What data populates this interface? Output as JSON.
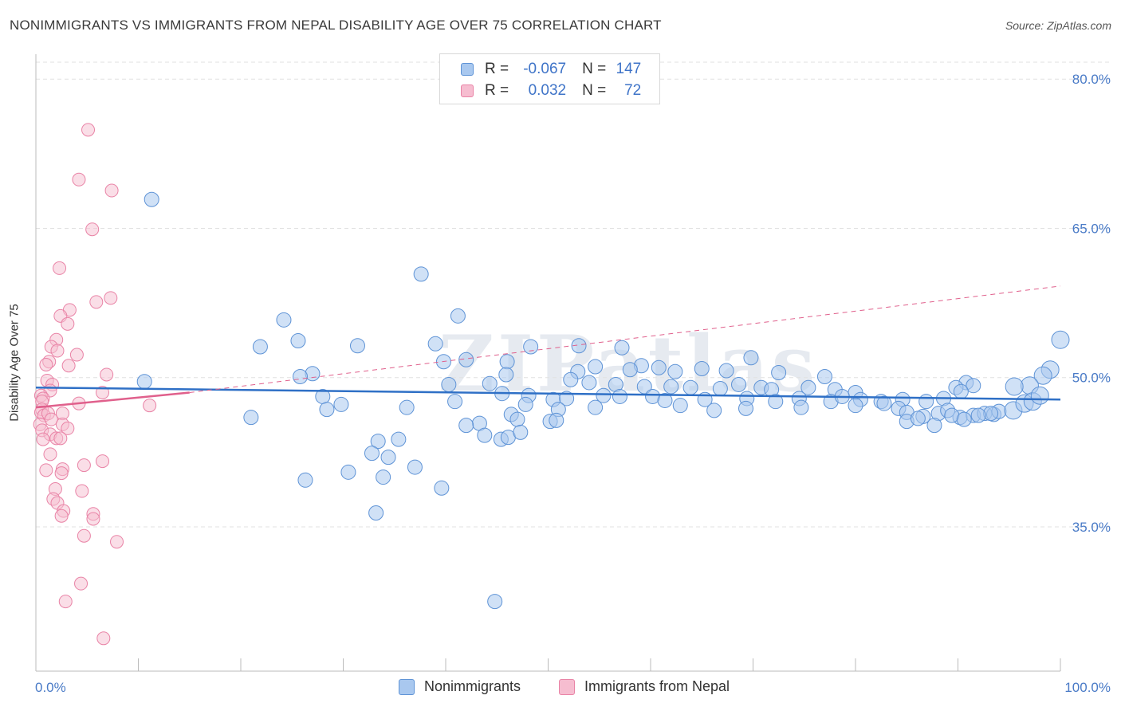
{
  "title": "NONIMMIGRANTS VS IMMIGRANTS FROM NEPAL DISABILITY AGE OVER 75 CORRELATION CHART",
  "source": "Source: ZipAtlas.com",
  "watermark": "ZIPatlas",
  "legend": {
    "rows": [
      {
        "r_label": "R =",
        "r_value": "-0.067",
        "n_label": "N =",
        "n_value": "147"
      },
      {
        "r_label": "R =",
        "r_value": "0.032",
        "n_label": "N =",
        "n_value": "72"
      }
    ]
  },
  "colors": {
    "blue_fill": "#a9c8ef",
    "blue_stroke": "#5e93d6",
    "blue_line": "#2f70c6",
    "pink_fill": "#f6bdd0",
    "pink_stroke": "#e983a6",
    "pink_line": "#e0608c",
    "grid": "#e1e1e1",
    "tick_text": "#4a7bc7"
  },
  "chart_data": {
    "type": "scatter",
    "title": "NONIMMIGRANTS VS IMMIGRANTS FROM NEPAL DISABILITY AGE OVER 75 CORRELATION CHART",
    "xlabel": "",
    "ylabel": "Disability Age Over 75",
    "xlim": [
      0,
      100
    ],
    "ylim": [
      20.5,
      82.5
    ],
    "x_tick_labels": [
      "0.0%",
      "100.0%"
    ],
    "y_ticks": [
      35,
      50,
      65,
      80
    ],
    "y_tick_labels": [
      "35.0%",
      "50.0%",
      "65.0%",
      "80.0%"
    ],
    "grid": true,
    "legend_position": "bottom",
    "series": [
      {
        "name": "Nonimmigrants",
        "points": [
          [
            11.3,
            67.9
          ],
          [
            37.6,
            60.4
          ],
          [
            41.2,
            56.2
          ],
          [
            24.2,
            55.8
          ],
          [
            25.6,
            53.7
          ],
          [
            21.9,
            53.1
          ],
          [
            31.4,
            53.2
          ],
          [
            39.0,
            53.4
          ],
          [
            48.3,
            53.1
          ],
          [
            53.0,
            53.2
          ],
          [
            57.2,
            53.0
          ],
          [
            69.8,
            52.0
          ],
          [
            42.0,
            51.8
          ],
          [
            39.8,
            51.6
          ],
          [
            46.0,
            51.6
          ],
          [
            45.9,
            50.3
          ],
          [
            52.9,
            50.6
          ],
          [
            59.1,
            51.2
          ],
          [
            54.6,
            51.1
          ],
          [
            58.0,
            50.8
          ],
          [
            60.8,
            51.0
          ],
          [
            62.4,
            50.6
          ],
          [
            65.0,
            50.9
          ],
          [
            67.4,
            50.7
          ],
          [
            72.5,
            50.5
          ],
          [
            77.0,
            50.1
          ],
          [
            27.0,
            50.4
          ],
          [
            25.8,
            50.1
          ],
          [
            90.8,
            49.5
          ],
          [
            91.5,
            49.2
          ],
          [
            10.6,
            49.6
          ],
          [
            40.3,
            49.3
          ],
          [
            44.3,
            49.4
          ],
          [
            52.2,
            49.8
          ],
          [
            54.0,
            49.5
          ],
          [
            56.6,
            49.3
          ],
          [
            59.4,
            49.1
          ],
          [
            62.0,
            49.1
          ],
          [
            63.9,
            49.0
          ],
          [
            66.8,
            48.9
          ],
          [
            68.6,
            49.3
          ],
          [
            70.8,
            49.0
          ],
          [
            71.8,
            48.8
          ],
          [
            75.4,
            49.0
          ],
          [
            78.0,
            48.8
          ],
          [
            80.0,
            48.5
          ],
          [
            89.8,
            49.0
          ],
          [
            90.3,
            48.6
          ],
          [
            100.0,
            53.8
          ],
          [
            99.0,
            50.8
          ],
          [
            98.3,
            50.2
          ],
          [
            97.0,
            49.2
          ],
          [
            95.5,
            49.1
          ],
          [
            28.0,
            48.1
          ],
          [
            29.8,
            47.3
          ],
          [
            28.4,
            46.8
          ],
          [
            36.2,
            47.0
          ],
          [
            40.9,
            47.6
          ],
          [
            45.5,
            48.4
          ],
          [
            48.1,
            48.2
          ],
          [
            50.5,
            47.8
          ],
          [
            51.8,
            47.9
          ],
          [
            55.4,
            48.2
          ],
          [
            57.0,
            48.1
          ],
          [
            60.2,
            48.1
          ],
          [
            61.4,
            47.7
          ],
          [
            65.3,
            47.8
          ],
          [
            69.4,
            47.9
          ],
          [
            72.2,
            47.6
          ],
          [
            74.5,
            47.9
          ],
          [
            77.6,
            47.6
          ],
          [
            78.7,
            48.1
          ],
          [
            80.5,
            47.8
          ],
          [
            82.5,
            47.6
          ],
          [
            84.6,
            47.8
          ],
          [
            86.9,
            47.6
          ],
          [
            88.6,
            47.9
          ],
          [
            47.8,
            47.3
          ],
          [
            51.0,
            46.8
          ],
          [
            54.6,
            47.0
          ],
          [
            62.9,
            47.2
          ],
          [
            66.2,
            46.7
          ],
          [
            69.3,
            46.9
          ],
          [
            74.7,
            47.0
          ],
          [
            80.0,
            47.2
          ],
          [
            82.8,
            47.4
          ],
          [
            84.2,
            46.9
          ],
          [
            85.0,
            46.5
          ],
          [
            86.6,
            46.1
          ],
          [
            88.1,
            46.4
          ],
          [
            89.0,
            46.7
          ],
          [
            90.2,
            46.0
          ],
          [
            91.5,
            46.2
          ],
          [
            92.6,
            46.4
          ],
          [
            93.5,
            46.3
          ],
          [
            94.0,
            46.6
          ],
          [
            95.4,
            46.7
          ],
          [
            96.5,
            47.4
          ],
          [
            97.3,
            47.6
          ],
          [
            98.0,
            48.2
          ],
          [
            93.2,
            46.4
          ],
          [
            92.0,
            46.2
          ],
          [
            21.0,
            46.0
          ],
          [
            46.4,
            46.3
          ],
          [
            47.0,
            45.8
          ],
          [
            50.2,
            45.6
          ],
          [
            50.8,
            45.7
          ],
          [
            43.3,
            45.4
          ],
          [
            42.0,
            45.2
          ],
          [
            85.0,
            45.6
          ],
          [
            86.1,
            45.9
          ],
          [
            87.7,
            45.2
          ],
          [
            89.4,
            46.2
          ],
          [
            90.6,
            45.8
          ],
          [
            43.8,
            44.2
          ],
          [
            45.4,
            43.8
          ],
          [
            46.1,
            44.0
          ],
          [
            47.3,
            44.5
          ],
          [
            33.4,
            43.6
          ],
          [
            35.4,
            43.8
          ],
          [
            32.8,
            42.4
          ],
          [
            34.4,
            42.0
          ],
          [
            30.5,
            40.5
          ],
          [
            37.0,
            41.0
          ],
          [
            33.9,
            40.0
          ],
          [
            26.3,
            39.7
          ],
          [
            39.6,
            38.9
          ],
          [
            33.2,
            36.4
          ],
          [
            44.8,
            27.5
          ]
        ]
      },
      {
        "name": "Immigrants from Nepal",
        "points": [
          [
            5.1,
            74.9
          ],
          [
            4.2,
            69.9
          ],
          [
            7.4,
            68.8
          ],
          [
            5.5,
            64.9
          ],
          [
            2.3,
            61.0
          ],
          [
            7.3,
            58.0
          ],
          [
            5.9,
            57.6
          ],
          [
            3.3,
            56.8
          ],
          [
            2.4,
            56.2
          ],
          [
            3.1,
            55.4
          ],
          [
            2.0,
            53.8
          ],
          [
            1.5,
            53.1
          ],
          [
            2.1,
            52.7
          ],
          [
            4.0,
            52.3
          ],
          [
            1.3,
            51.6
          ],
          [
            3.2,
            51.2
          ],
          [
            1.0,
            51.3
          ],
          [
            6.9,
            50.3
          ],
          [
            1.1,
            49.7
          ],
          [
            1.6,
            49.3
          ],
          [
            1.4,
            48.7
          ],
          [
            6.5,
            48.5
          ],
          [
            0.5,
            48.2
          ],
          [
            0.7,
            47.9
          ],
          [
            0.6,
            47.6
          ],
          [
            4.2,
            47.4
          ],
          [
            11.1,
            47.2
          ],
          [
            0.6,
            46.8
          ],
          [
            0.5,
            46.5
          ],
          [
            0.8,
            46.2
          ],
          [
            1.2,
            46.4
          ],
          [
            2.6,
            46.4
          ],
          [
            1.5,
            45.8
          ],
          [
            2.6,
            45.3
          ],
          [
            0.4,
            45.3
          ],
          [
            0.6,
            44.7
          ],
          [
            3.1,
            44.9
          ],
          [
            1.4,
            44.3
          ],
          [
            2.0,
            43.9
          ],
          [
            2.4,
            43.9
          ],
          [
            0.7,
            43.8
          ],
          [
            1.4,
            42.3
          ],
          [
            6.5,
            41.6
          ],
          [
            4.7,
            41.2
          ],
          [
            2.6,
            40.8
          ],
          [
            1.0,
            40.7
          ],
          [
            2.5,
            40.4
          ],
          [
            1.9,
            38.8
          ],
          [
            4.5,
            38.6
          ],
          [
            1.7,
            37.8
          ],
          [
            2.1,
            37.4
          ],
          [
            2.7,
            36.6
          ],
          [
            5.6,
            36.3
          ],
          [
            2.5,
            36.1
          ],
          [
            5.6,
            35.8
          ],
          [
            4.7,
            34.1
          ],
          [
            7.9,
            33.5
          ],
          [
            4.4,
            29.3
          ],
          [
            2.9,
            27.5
          ],
          [
            6.6,
            23.8
          ]
        ]
      }
    ],
    "trend_lines": [
      {
        "series": "Nonimmigrants",
        "x": [
          0,
          100
        ],
        "y": [
          49.0,
          47.8
        ],
        "style": "solid"
      },
      {
        "series": "Immigrants from Nepal",
        "x": [
          0,
          15
        ],
        "y": [
          47.0,
          48.5
        ],
        "style": "solid"
      },
      {
        "series": "Immigrants from Nepal",
        "x": [
          15,
          100
        ],
        "y": [
          48.5,
          59.2
        ],
        "style": "dashed"
      }
    ]
  }
}
